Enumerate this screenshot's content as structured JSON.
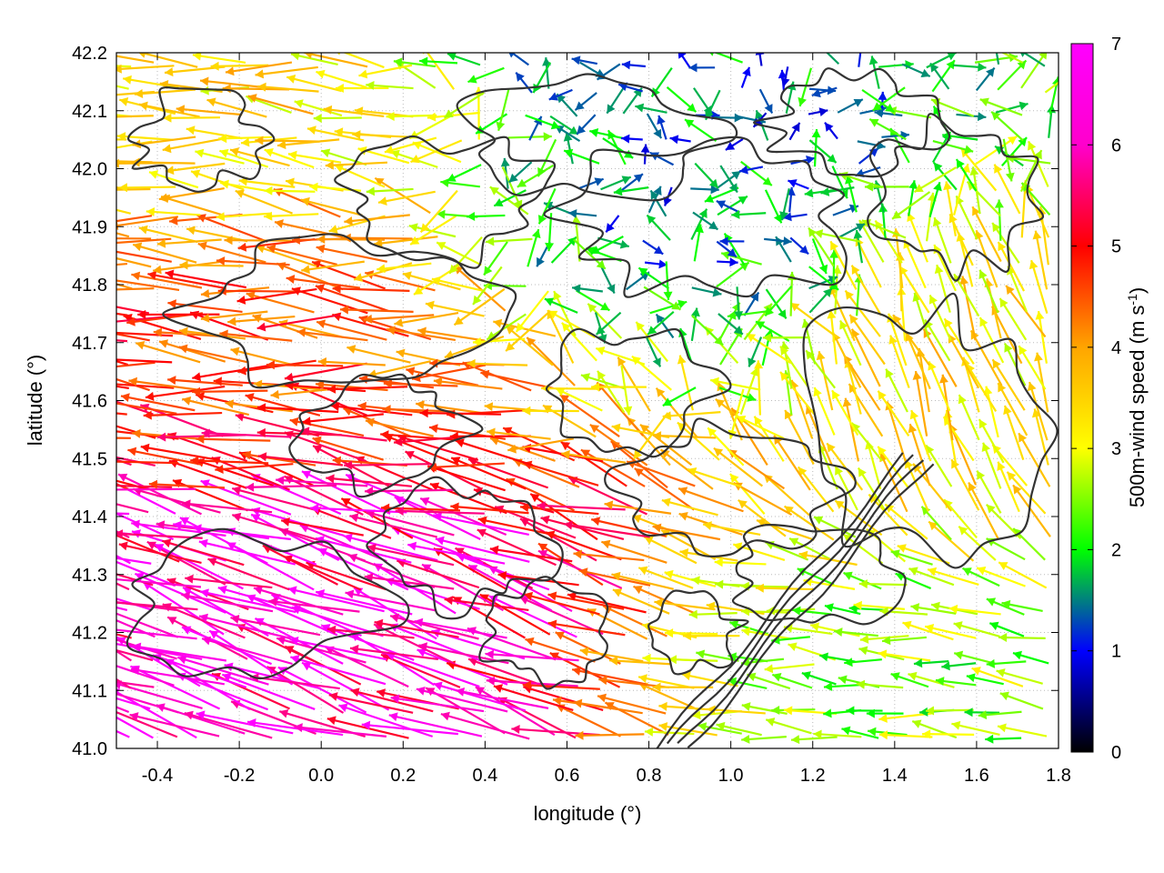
{
  "chart_data": {
    "type": "vector-field",
    "xlabel": "longitude (°)",
    "ylabel": "latitude (°)",
    "xlim": [
      -0.5,
      1.8
    ],
    "ylim": [
      41.0,
      42.2
    ],
    "xticks": [
      "-0.4",
      "-0.2",
      "0.0",
      "0.2",
      "0.4",
      "0.6",
      "0.8",
      "1.0",
      "1.2",
      "1.4",
      "1.6",
      "1.8"
    ],
    "yticks": [
      "41.0",
      "41.1",
      "41.2",
      "41.3",
      "41.4",
      "41.5",
      "41.6",
      "41.7",
      "41.8",
      "41.9",
      "42.0",
      "42.1",
      "42.2"
    ],
    "grid": true,
    "colorbar": {
      "label_main": "500m-wind speed (m s",
      "label_sup": "-1",
      "label_close": ")",
      "range": [
        0,
        7
      ],
      "ticks": [
        "0",
        "1",
        "2",
        "3",
        "4",
        "5",
        "6",
        "7"
      ],
      "palette": [
        "#000000",
        "#0000ff",
        "#00ff00",
        "#ffff00",
        "#ffa500",
        "#ff0000",
        "#ff00ff"
      ]
    },
    "wind_regions": [
      {
        "region": "west-southwest",
        "lon": [
          -0.5,
          0.7
        ],
        "lat": [
          41.0,
          41.45
        ],
        "speed_ms": 7.0,
        "direction": "toward west-northwest"
      },
      {
        "region": "west-central",
        "lon": [
          -0.5,
          0.5
        ],
        "lat": [
          41.45,
          41.9
        ],
        "speed_ms": 5.5,
        "direction": "toward west"
      },
      {
        "region": "northwest",
        "lon": [
          -0.5,
          0.3
        ],
        "lat": [
          41.9,
          42.2
        ],
        "speed_ms": 4.0,
        "direction": "toward west"
      },
      {
        "region": "north-central",
        "lon": [
          0.4,
          1.4
        ],
        "lat": [
          41.7,
          42.2
        ],
        "speed_ms": 1.5,
        "direction": "variable"
      },
      {
        "region": "east",
        "lon": [
          1.2,
          1.8
        ],
        "lat": [
          41.4,
          41.9
        ],
        "speed_ms": 4.0,
        "direction": "toward north-northwest"
      },
      {
        "region": "southeast",
        "lon": [
          0.9,
          1.8
        ],
        "lat": [
          41.0,
          41.3
        ],
        "speed_ms": 2.8,
        "direction": "toward west"
      }
    ]
  }
}
